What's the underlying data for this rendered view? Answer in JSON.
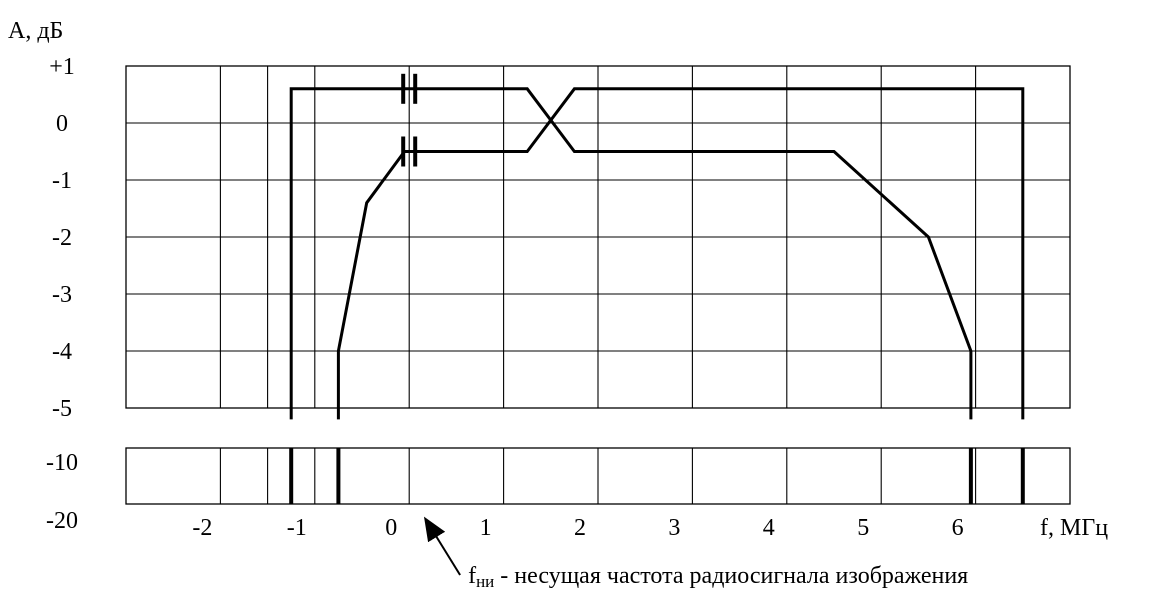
{
  "chart_data": {
    "type": "line",
    "ylabel": "А, дБ",
    "xlabel": "f, МГц",
    "x_ticks": [
      -2,
      -1,
      0,
      1,
      2,
      3,
      4,
      5,
      6
    ],
    "x_tick_labels": [
      "-2",
      "-1",
      "0",
      "1",
      "2",
      "3",
      "4",
      "5",
      "6"
    ],
    "xlim": [
      -3,
      7
    ],
    "upper_panel": {
      "y_ticks": [
        1,
        0,
        -1,
        -2,
        -3,
        -4,
        -5
      ],
      "y_tick_labels": [
        "+1",
        "0",
        "-1",
        "-2",
        "-3",
        "-4",
        "-5"
      ],
      "ylim": [
        -5,
        1
      ]
    },
    "lower_panel": {
      "y_tick_labels": [
        "-10",
        "-20"
      ]
    },
    "grid": true,
    "series": [
      {
        "values": [
          [
            -1.25,
            -5.2
          ],
          [
            -1.25,
            0.6
          ],
          [
            -0.1,
            0.6
          ],
          [
            1.25,
            0.6
          ],
          [
            1.75,
            -0.5
          ],
          [
            4.5,
            -0.5
          ],
          [
            5.5,
            -2.0
          ],
          [
            5.95,
            -4.0
          ],
          [
            5.95,
            -5.2
          ]
        ]
      },
      {
        "values": [
          [
            -0.75,
            -5.2
          ],
          [
            -0.75,
            -4.0
          ],
          [
            -0.45,
            -1.4
          ],
          [
            -0.05,
            -0.5
          ],
          [
            1.25,
            -0.5
          ],
          [
            1.75,
            0.6
          ],
          [
            6.5,
            0.6
          ],
          [
            6.5,
            -5.2
          ]
        ]
      }
    ],
    "lower_marks_x": [
      -1.25,
      -0.75,
      5.95,
      6.5
    ],
    "annotation": {
      "x": 0.2,
      "symbol": "f",
      "subscript": "ни",
      "text": " - несущая частота радиосигнала изображения"
    }
  }
}
